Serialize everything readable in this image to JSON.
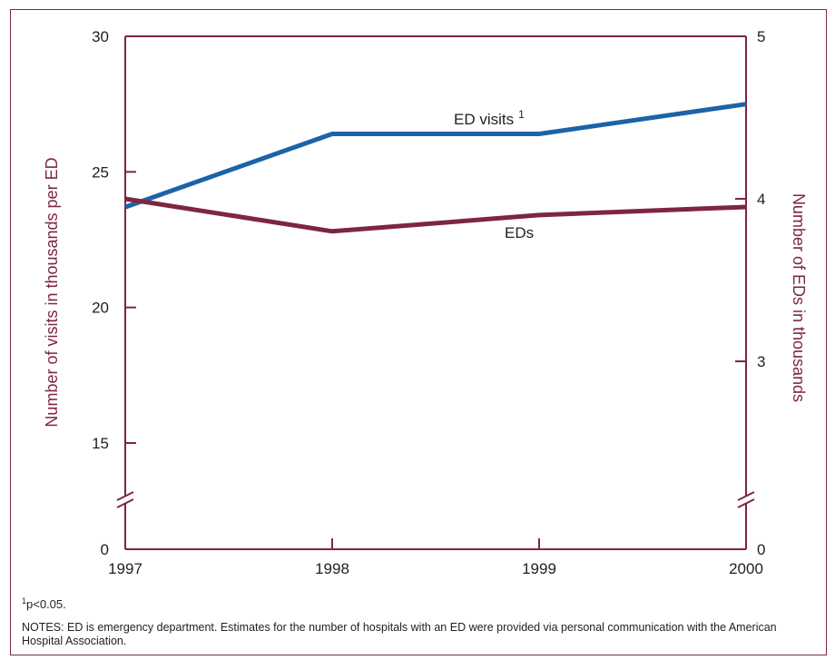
{
  "chart_data": {
    "type": "line",
    "x": [
      "1997",
      "1998",
      "1999",
      "2000"
    ],
    "left_axis": {
      "label": "Number of  visits in thousands per ED",
      "ticks": [
        "0",
        "15",
        "20",
        "25",
        "30"
      ],
      "ylim": [
        13,
        30
      ],
      "broken": true
    },
    "right_axis": {
      "label": "Number of EDs in thousands",
      "ticks": [
        "0",
        "3",
        "4",
        "5"
      ],
      "ylim": [
        2,
        5
      ],
      "broken": true
    },
    "series": [
      {
        "name": "ED visits",
        "superscript": "1",
        "axis": "left",
        "values": [
          23.7,
          26.4,
          26.4,
          27.5
        ],
        "color": "#1c63a8"
      },
      {
        "name": "EDs",
        "superscript": "",
        "axis": "right",
        "values": [
          4.0,
          3.8,
          3.9,
          3.95
        ],
        "color": "#7d2640"
      }
    ],
    "axis_color": "#7d2640",
    "grid": false
  },
  "footnote": {
    "marker": "1",
    "text": "p<0.05."
  },
  "notes": "NOTES: ED is emergency department. Estimates for the number of hospitals with an ED were provided via personal communication with the American Hospital Association."
}
